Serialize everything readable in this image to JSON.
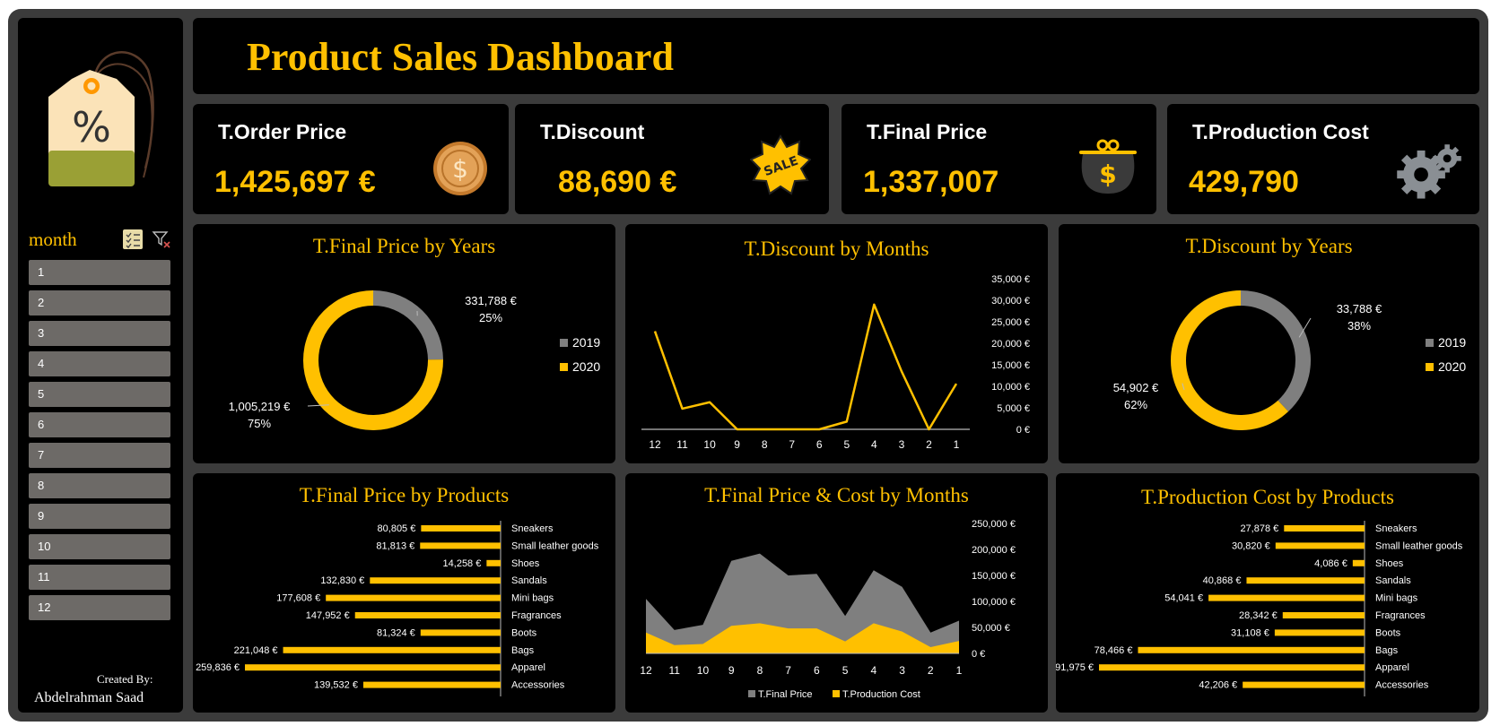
{
  "header": {
    "title": "Product Sales Dashboard"
  },
  "sidebar": {
    "slicer_label": "month",
    "months": [
      "1",
      "2",
      "3",
      "4",
      "5",
      "6",
      "7",
      "8",
      "9",
      "10",
      "11",
      "12"
    ],
    "created_by": "Created By:",
    "author": "Abdelrahman Saad",
    "tag_symbol": "%"
  },
  "kpis": [
    {
      "label": "T.Order Price",
      "value": "1,425,697 €",
      "icon": "coin-icon"
    },
    {
      "label": "T.Discount",
      "value": "88,690 €",
      "icon": "sale-badge-icon",
      "icon_text": "SALE"
    },
    {
      "label": "T.Final Price",
      "value": "1,337,007",
      "icon": "money-bag-icon",
      "icon_text": "$"
    },
    {
      "label": "T.Production Cost",
      "value": "429,790",
      "icon": "gears-icon"
    }
  ],
  "colors": {
    "accent": "#ffc000",
    "grey": "#7f7f7f",
    "panel": "#000000",
    "frame": "#3b3b3b",
    "slicer": "#6d6a67"
  },
  "chart_data": [
    {
      "id": "final-price-by-years",
      "type": "pie",
      "title": "T.Final Price by Years",
      "series": [
        {
          "name": "2019",
          "value": 331788,
          "label": "331,788 €",
          "pct": "25%",
          "color": "#7f7f7f"
        },
        {
          "name": "2020",
          "value": 1005219,
          "label": "1,005,219 €",
          "pct": "75%",
          "color": "#ffc000"
        }
      ],
      "legend": "right"
    },
    {
      "id": "discount-by-months",
      "type": "line",
      "title": "T.Discount by Months",
      "categories": [
        "12",
        "11",
        "10",
        "9",
        "8",
        "7",
        "6",
        "5",
        "4",
        "3",
        "2",
        "1"
      ],
      "values": [
        22800,
        4800,
        6300,
        0,
        0,
        0,
        0,
        1800,
        29000,
        13500,
        0,
        10600
      ],
      "ylim": [
        0,
        35000
      ],
      "yticks": [
        "0 €",
        "5,000 €",
        "10,000 €",
        "15,000 €",
        "20,000 €",
        "25,000 €",
        "30,000 €",
        "35,000 €"
      ],
      "grid": false
    },
    {
      "id": "discount-by-years",
      "type": "pie",
      "title": "T.Discount by Years",
      "series": [
        {
          "name": "2019",
          "value": 33788,
          "label": "33,788 €",
          "pct": "38%",
          "color": "#7f7f7f"
        },
        {
          "name": "2020",
          "value": 54902,
          "label": "54,902 €",
          "pct": "62%",
          "color": "#ffc000"
        }
      ],
      "legend": "right"
    },
    {
      "id": "final-price-by-products",
      "type": "bar",
      "title": "T.Final Price by Products",
      "categories": [
        "Sneakers",
        "Small leather goods",
        "Shoes",
        "Sandals",
        "Mini bags",
        "Fragrances",
        "Boots",
        "Bags",
        "Apparel",
        "Accessories"
      ],
      "values": [
        80805,
        81813,
        14258,
        132830,
        177608,
        147952,
        81324,
        221048,
        259836,
        139532
      ],
      "labels": [
        "80,805 €",
        "81,813 €",
        "14,258 €",
        "132,830 €",
        "177,608 €",
        "147,952 €",
        "81,324 €",
        "221,048 €",
        "259,836 €",
        "139,532 €"
      ],
      "orientation": "horizontal-reversed"
    },
    {
      "id": "final-price-cost-by-months",
      "type": "area",
      "title": "T.Final Price & Cost by Months",
      "categories": [
        "12",
        "11",
        "10",
        "9",
        "8",
        "7",
        "6",
        "5",
        "4",
        "3",
        "2",
        "1"
      ],
      "series": [
        {
          "name": "T.Final Price",
          "values": [
            105000,
            45000,
            55000,
            178000,
            192000,
            150000,
            153000,
            72000,
            160000,
            128000,
            40000,
            63000
          ],
          "color": "#7f7f7f"
        },
        {
          "name": "T.Production Cost",
          "values": [
            40000,
            16000,
            18000,
            53000,
            58000,
            48000,
            48000,
            23000,
            58000,
            42000,
            12000,
            24000
          ],
          "color": "#ffc000"
        }
      ],
      "ylim": [
        0,
        250000
      ],
      "yticks": [
        "0 €",
        "50,000 €",
        "100,000 €",
        "150,000 €",
        "200,000 €",
        "250,000 €"
      ],
      "legend": "bottom"
    },
    {
      "id": "production-cost-by-products",
      "type": "bar",
      "title": "T.Production Cost by Products",
      "categories": [
        "Sneakers",
        "Small leather goods",
        "Shoes",
        "Sandals",
        "Mini bags",
        "Fragrances",
        "Boots",
        "Bags",
        "Apparel",
        "Accessories"
      ],
      "values": [
        27878,
        30820,
        4086,
        40868,
        54041,
        28342,
        31108,
        78466,
        91975,
        42206
      ],
      "labels": [
        "27,878 €",
        "30,820 €",
        "4,086 €",
        "40,868 €",
        "54,041 €",
        "28,342 €",
        "31,108 €",
        "78,466 €",
        "91,975 €",
        "42,206 €"
      ],
      "orientation": "horizontal-reversed"
    }
  ]
}
